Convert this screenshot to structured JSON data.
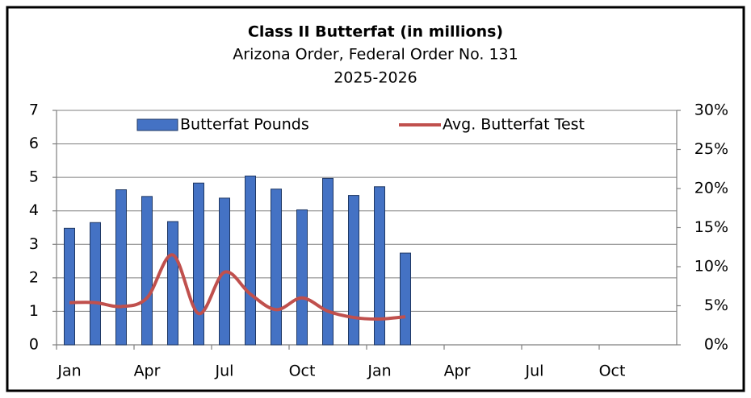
{
  "chart_data": {
    "type": "bar_line",
    "title": "Class II Butterfat (in millions)",
    "subtitle": "Arizona Order, Federal Order No. 131",
    "subtitle2": "2025-2026",
    "categories": [
      "Jan",
      null,
      null,
      "Apr",
      null,
      null,
      "Jul",
      null,
      null,
      "Oct",
      null,
      null,
      "Jan",
      null,
      null,
      "Apr",
      null,
      null,
      "Jul",
      null,
      null,
      "Oct",
      null,
      null
    ],
    "series": [
      {
        "name": "Butterfat Pounds",
        "type": "bar",
        "color": "#4472c4",
        "values": [
          3.48,
          3.65,
          4.63,
          4.43,
          3.68,
          4.83,
          4.38,
          5.04,
          4.65,
          4.03,
          4.97,
          4.46,
          4.72,
          2.74,
          null,
          null,
          null,
          null,
          null,
          null,
          null,
          null,
          null,
          null
        ]
      },
      {
        "name": "Avg. Butterfat Test",
        "type": "line",
        "axis": "y2",
        "color": "#c0504d",
        "values": [
          5.4,
          5.4,
          4.9,
          6.0,
          11.5,
          4.0,
          9.3,
          6.5,
          4.5,
          6.0,
          4.3,
          3.5,
          3.3,
          3.6,
          null,
          null,
          null,
          null,
          null,
          null,
          null,
          null,
          null,
          null
        ]
      }
    ],
    "ylim": [
      0,
      7
    ],
    "yticks": [
      0,
      1,
      2,
      3,
      4,
      5,
      6,
      7
    ],
    "y2lim": [
      0,
      30
    ],
    "y2ticks": [
      {
        "value": 0,
        "label": "0%"
      },
      {
        "value": 5,
        "label": "5%"
      },
      {
        "value": 10,
        "label": "10%"
      },
      {
        "value": 15,
        "label": "15%"
      },
      {
        "value": 20,
        "label": "20%"
      },
      {
        "value": 25,
        "label": "25%"
      },
      {
        "value": 30,
        "label": "30%"
      }
    ],
    "grid": true,
    "legend": "top"
  }
}
